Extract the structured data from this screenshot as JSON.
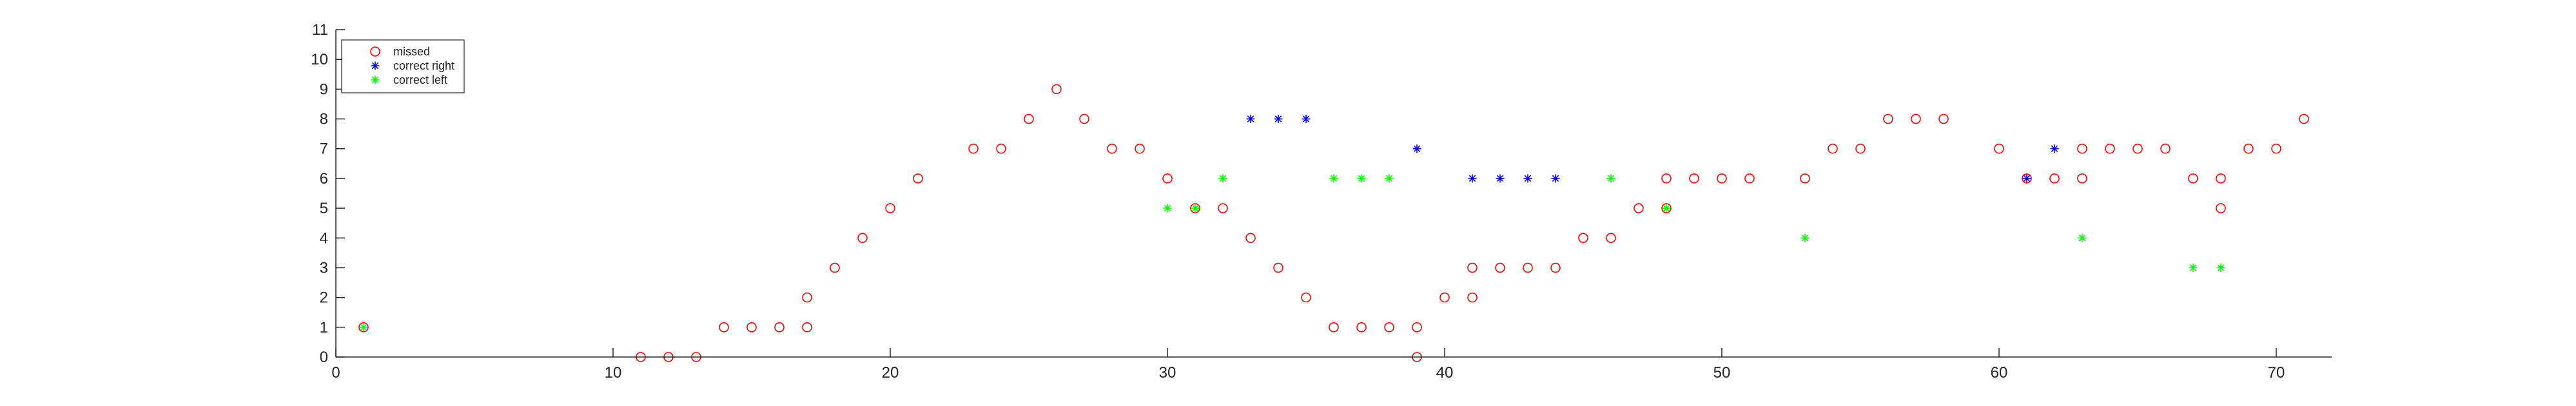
{
  "chart_data": {
    "type": "scatter",
    "title": "",
    "xlabel": "",
    "ylabel": "",
    "xlim": [
      0,
      72
    ],
    "ylim": [
      0,
      11
    ],
    "x_ticks": [
      0,
      10,
      20,
      30,
      40,
      50,
      60,
      70
    ],
    "y_ticks": [
      0,
      1,
      2,
      3,
      4,
      5,
      6,
      7,
      8,
      9,
      10,
      11
    ],
    "grid": false,
    "legend_position": "top-left",
    "series": [
      {
        "name": "missed",
        "marker": "circle",
        "color": "#ff0000",
        "points": [
          [
            1,
            1
          ],
          [
            11,
            0
          ],
          [
            12,
            0
          ],
          [
            13,
            0
          ],
          [
            14,
            1
          ],
          [
            15,
            1
          ],
          [
            16,
            1
          ],
          [
            17,
            1
          ],
          [
            17,
            2
          ],
          [
            18,
            3
          ],
          [
            19,
            4
          ],
          [
            20,
            5
          ],
          [
            21,
            6
          ],
          [
            23,
            7
          ],
          [
            24,
            7
          ],
          [
            25,
            8
          ],
          [
            26,
            9
          ],
          [
            27,
            8
          ],
          [
            28,
            7
          ],
          [
            29,
            7
          ],
          [
            30,
            6
          ],
          [
            31,
            5
          ],
          [
            32,
            5
          ],
          [
            33,
            4
          ],
          [
            34,
            3
          ],
          [
            35,
            2
          ],
          [
            36,
            1
          ],
          [
            37,
            1
          ],
          [
            38,
            1
          ],
          [
            39,
            1
          ],
          [
            39,
            0
          ],
          [
            40,
            2
          ],
          [
            41,
            2
          ],
          [
            41,
            3
          ],
          [
            42,
            3
          ],
          [
            43,
            3
          ],
          [
            44,
            3
          ],
          [
            45,
            4
          ],
          [
            46,
            4
          ],
          [
            47,
            5
          ],
          [
            48,
            5
          ],
          [
            48,
            6
          ],
          [
            49,
            6
          ],
          [
            50,
            6
          ],
          [
            51,
            6
          ],
          [
            53,
            6
          ],
          [
            54,
            7
          ],
          [
            55,
            7
          ],
          [
            56,
            8
          ],
          [
            57,
            8
          ],
          [
            58,
            8
          ],
          [
            60,
            7
          ],
          [
            61,
            6
          ],
          [
            62,
            6
          ],
          [
            63,
            6
          ],
          [
            63,
            7
          ],
          [
            64,
            7
          ],
          [
            65,
            7
          ],
          [
            66,
            7
          ],
          [
            67,
            6
          ],
          [
            68,
            5
          ],
          [
            68,
            6
          ],
          [
            69,
            7
          ],
          [
            70,
            7
          ],
          [
            71,
            8
          ]
        ]
      },
      {
        "name": "correct right",
        "marker": "asterisk",
        "color": "#0000ff",
        "points": [
          [
            33,
            8
          ],
          [
            34,
            8
          ],
          [
            35,
            8
          ],
          [
            39,
            7
          ],
          [
            41,
            6
          ],
          [
            42,
            6
          ],
          [
            43,
            6
          ],
          [
            44,
            6
          ],
          [
            61,
            6
          ],
          [
            62,
            7
          ]
        ]
      },
      {
        "name": "correct left",
        "marker": "asterisk",
        "color": "#00ff00",
        "points": [
          [
            1,
            1
          ],
          [
            30,
            5
          ],
          [
            31,
            5
          ],
          [
            32,
            6
          ],
          [
            36,
            6
          ],
          [
            37,
            6
          ],
          [
            38,
            6
          ],
          [
            46,
            6
          ],
          [
            48,
            5
          ],
          [
            53,
            4
          ],
          [
            63,
            4
          ],
          [
            67,
            3
          ],
          [
            68,
            3
          ]
        ]
      }
    ]
  }
}
